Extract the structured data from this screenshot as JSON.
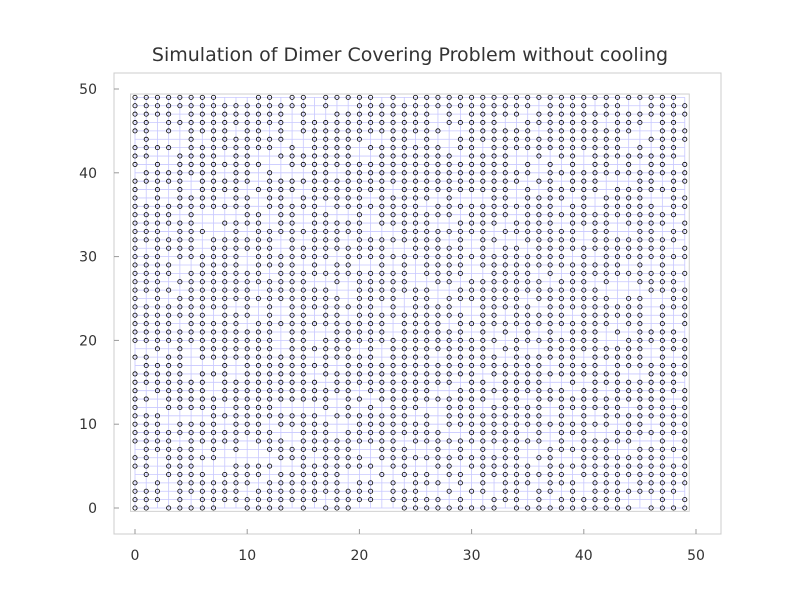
{
  "chart_data": {
    "type": "scatter",
    "title": "Simulation of Dimer Covering Problem without cooling",
    "xlabel": "",
    "ylabel": "",
    "xlim": [
      -3,
      52
    ],
    "ylim": [
      -3.5,
      52
    ],
    "x_ticks": [
      0,
      10,
      20,
      30,
      40,
      50
    ],
    "y_ticks": [
      0,
      10,
      20,
      30,
      40,
      50
    ],
    "x_tick_labels": [
      "0",
      "10",
      "20",
      "30",
      "40",
      "50"
    ],
    "y_tick_labels": [
      "0",
      "10",
      "20",
      "30",
      "40",
      "50"
    ],
    "lattice": {
      "size": 50,
      "min": 0,
      "max": 49
    },
    "grid": true,
    "grid_color": "#c8c8ff",
    "marker": "open-circle",
    "marker_color": "#000000",
    "note_for_points": "Open-circle markers sit at occupied (unpaired) lattice sites; most sites on the 50x50 lattice carry a marker, with scattered empty sites and short empty paths between them."
  }
}
